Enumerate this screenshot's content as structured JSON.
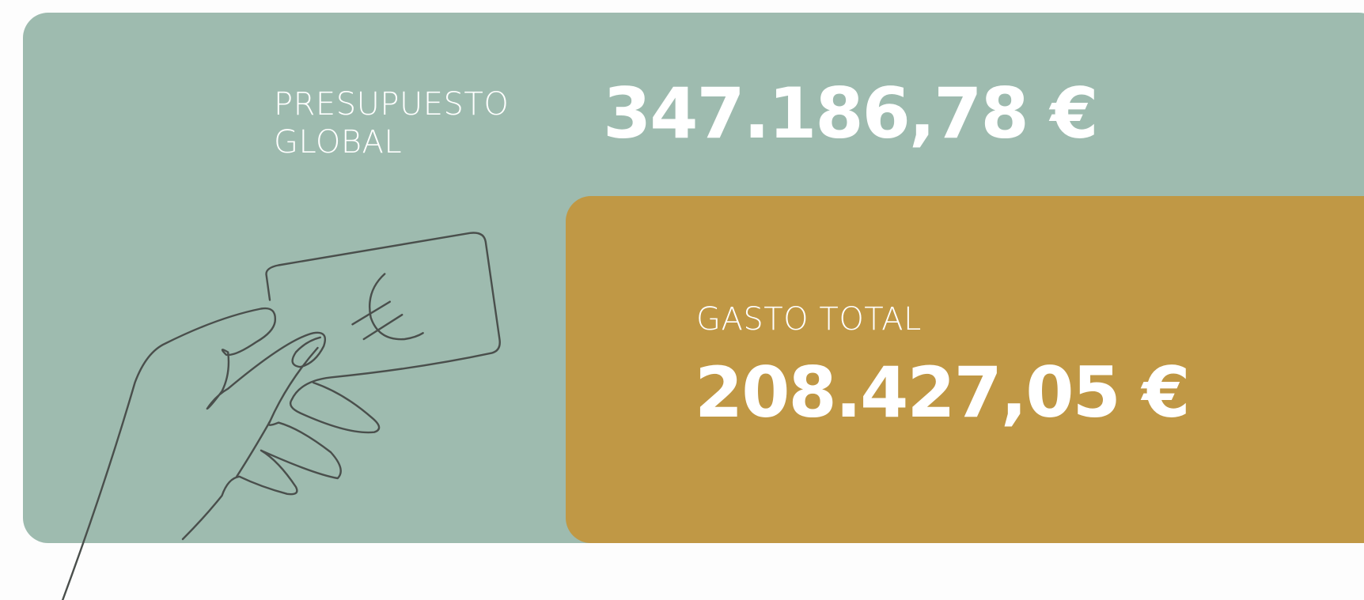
{
  "budget": {
    "label": "PRESUPUESTO GLOBAL",
    "value": "347.186,78 €"
  },
  "spending": {
    "label": "GASTO TOTAL",
    "value": "208.427,05 €"
  }
}
